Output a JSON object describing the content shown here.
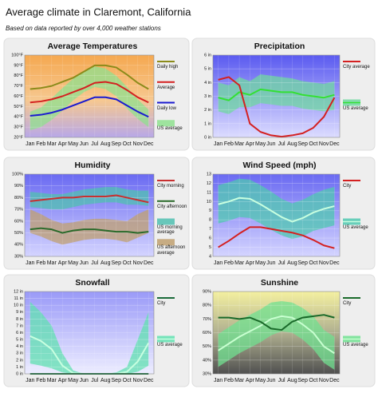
{
  "title": "Average climate in Claremont, California",
  "subtitle": "Based on data reported by over 4,000 weather stations",
  "chart_data": [
    {
      "type": "line",
      "title": "Average Temperatures",
      "categories": [
        "Jan",
        "Feb",
        "Mar",
        "Apr",
        "May",
        "Jun",
        "Jul",
        "Aug",
        "Sep",
        "Oct",
        "Nov",
        "Dec"
      ],
      "ylim": [
        20,
        100
      ],
      "yticks": [
        {
          "value": 20,
          "label": "20°F"
        },
        {
          "value": 30,
          "label": "30°F"
        },
        {
          "value": 40,
          "label": "40°F"
        },
        {
          "value": 50,
          "label": "50°F"
        },
        {
          "value": 60,
          "label": "60°F"
        },
        {
          "value": 70,
          "label": "70°F"
        },
        {
          "value": 80,
          "label": "80°F"
        },
        {
          "value": 90,
          "label": "90°F"
        },
        {
          "value": 100,
          "label": "100°F"
        }
      ],
      "series": [
        {
          "name": "Daily high",
          "color": "#8b8b1a",
          "values": [
            67,
            68,
            70,
            74,
            78,
            84,
            90,
            90,
            88,
            81,
            73,
            67
          ]
        },
        {
          "name": "Average",
          "color": "#d42020",
          "values": [
            54,
            55,
            57,
            60,
            64,
            68,
            73,
            74,
            72,
            66,
            59,
            54
          ]
        },
        {
          "name": "Daily low",
          "color": "#1a1ad0",
          "values": [
            41,
            42,
            44,
            47,
            51,
            55,
            59,
            59,
            57,
            51,
            45,
            40
          ]
        }
      ],
      "bands": [
        {
          "name": "US average",
          "color": "#8fe08f",
          "low": [
            27,
            30,
            37,
            46,
            56,
            64,
            69,
            67,
            60,
            48,
            38,
            30
          ],
          "high": [
            45,
            49,
            58,
            68,
            77,
            85,
            89,
            87,
            80,
            69,
            57,
            47
          ]
        }
      ]
    },
    {
      "type": "line",
      "title": "Precipitation",
      "categories": [
        "Jan",
        "Feb",
        "Mar",
        "Apr",
        "May",
        "Jun",
        "Jul",
        "Aug",
        "Sep",
        "Oct",
        "Nov",
        "Dec"
      ],
      "ylim": [
        0,
        6
      ],
      "yticks": [
        {
          "value": 0,
          "label": "0 in"
        },
        {
          "value": 1,
          "label": "1 in"
        },
        {
          "value": 2,
          "label": "2 in"
        },
        {
          "value": 3,
          "label": "3 in"
        },
        {
          "value": 4,
          "label": "4 in"
        },
        {
          "value": 5,
          "label": "5 in"
        },
        {
          "value": 6,
          "label": "6 in"
        }
      ],
      "series": [
        {
          "name": "City average",
          "color": "#d42020",
          "values": [
            4.2,
            4.4,
            3.8,
            1.0,
            0.4,
            0.15,
            0.05,
            0.15,
            0.3,
            0.7,
            1.5,
            2.9
          ]
        }
      ],
      "bands": [
        {
          "name": "US average",
          "color": "#70d8a0",
          "line_color": "#33e033",
          "values": [
            2.9,
            2.7,
            3.3,
            3.1,
            3.5,
            3.4,
            3.3,
            3.3,
            3.1,
            3.0,
            2.9,
            3.1
          ],
          "low": [
            1.9,
            1.7,
            2.2,
            2.2,
            2.5,
            2.4,
            2.3,
            2.3,
            2.1,
            2.0,
            1.9,
            2.0
          ],
          "high": [
            4.0,
            3.8,
            4.4,
            4.1,
            4.6,
            4.5,
            4.4,
            4.3,
            4.1,
            4.0,
            3.9,
            4.1
          ]
        }
      ]
    },
    {
      "type": "line",
      "title": "Humidity",
      "categories": [
        "Jan",
        "Feb",
        "Mar",
        "Apr",
        "May",
        "Jun",
        "Jul",
        "Aug",
        "Sep",
        "Oct",
        "Nov",
        "Dec"
      ],
      "ylim": [
        30,
        100
      ],
      "yticks": [
        {
          "value": 30,
          "label": "30%"
        },
        {
          "value": 40,
          "label": "40%"
        },
        {
          "value": 50,
          "label": "50%"
        },
        {
          "value": 60,
          "label": "60%"
        },
        {
          "value": 70,
          "label": "70%"
        },
        {
          "value": 80,
          "label": "80%"
        },
        {
          "value": 90,
          "label": "90%"
        },
        {
          "value": 100,
          "label": "100%"
        }
      ],
      "series": [
        {
          "name": "City morning",
          "color": "#c83030",
          "values": [
            77,
            78,
            79,
            80,
            80,
            81,
            81,
            81,
            82,
            80,
            78,
            76
          ]
        },
        {
          "name": "City afternoon",
          "color": "#2a6a2a",
          "values": [
            53,
            54,
            53,
            50,
            52,
            53,
            53,
            52,
            51,
            51,
            50,
            51
          ]
        }
      ],
      "bands": [
        {
          "name": "US morning average",
          "color": "#50c0b0",
          "low": [
            72,
            71,
            70,
            70,
            72,
            74,
            75,
            76,
            76,
            74,
            74,
            73
          ],
          "high": [
            85,
            84,
            83,
            83,
            85,
            87,
            88,
            89,
            89,
            87,
            86,
            86
          ]
        },
        {
          "name": "US afternoon average",
          "color": "#c0a070",
          "low": [
            50,
            47,
            43,
            40,
            42,
            44,
            45,
            45,
            44,
            42,
            46,
            50
          ],
          "high": [
            70,
            66,
            61,
            58,
            59,
            61,
            62,
            62,
            61,
            60,
            66,
            70
          ]
        }
      ]
    },
    {
      "type": "line",
      "title": "Wind Speed (mph)",
      "categories": [
        "Jan",
        "Feb",
        "Mar",
        "Apr",
        "May",
        "Jun",
        "Jul",
        "Aug",
        "Sep",
        "Oct",
        "Nov",
        "Dec"
      ],
      "ylim": [
        4,
        13
      ],
      "yticks": [
        4,
        5,
        6,
        7,
        8,
        9,
        10,
        11,
        12,
        13
      ],
      "series": [
        {
          "name": "City",
          "color": "#d42020",
          "values": [
            5.0,
            5.7,
            6.5,
            7.2,
            7.2,
            7.0,
            6.8,
            6.6,
            6.3,
            5.8,
            5.2,
            4.9
          ]
        }
      ],
      "bands": [
        {
          "name": "US average",
          "color": "#50c8b0",
          "line_color": "#c8ffe0",
          "values": [
            9.7,
            10.0,
            10.4,
            10.3,
            9.7,
            9.0,
            8.3,
            7.8,
            8.2,
            8.8,
            9.2,
            9.5
          ],
          "low": [
            7.6,
            7.9,
            8.3,
            8.2,
            7.6,
            6.9,
            6.3,
            5.9,
            6.2,
            6.8,
            7.1,
            7.4
          ],
          "high": [
            11.8,
            12.1,
            12.5,
            12.4,
            11.8,
            11.1,
            10.3,
            9.8,
            10.2,
            10.8,
            11.3,
            11.6
          ]
        }
      ]
    },
    {
      "type": "line",
      "title": "Snowfall",
      "categories": [
        "Jan",
        "Feb",
        "Mar",
        "Apr",
        "May",
        "Jun",
        "Jul",
        "Aug",
        "Sep",
        "Oct",
        "Nov",
        "Dec"
      ],
      "ylim": [
        0,
        12
      ],
      "yticks": [
        {
          "value": 0,
          "label": "0 in"
        },
        {
          "value": 1,
          "label": "1 in"
        },
        {
          "value": 2,
          "label": "2 in"
        },
        {
          "value": 3,
          "label": "3 in"
        },
        {
          "value": 4,
          "label": "4 in"
        },
        {
          "value": 5,
          "label": "5 in"
        },
        {
          "value": 6,
          "label": "6 in"
        },
        {
          "value": 7,
          "label": "7 in"
        },
        {
          "value": 8,
          "label": "8 in"
        },
        {
          "value": 9,
          "label": "9 in"
        },
        {
          "value": 10,
          "label": "10 in"
        },
        {
          "value": 11,
          "label": "11 in"
        },
        {
          "value": 12,
          "label": "12 in"
        }
      ],
      "series": [
        {
          "name": "City",
          "color": "#1a6a3a",
          "values": [
            0,
            0,
            0,
            0,
            0,
            0,
            0,
            0,
            0,
            0,
            0,
            0
          ]
        }
      ],
      "bands": [
        {
          "name": "US average",
          "color": "#60e0b0",
          "line_color": "#c8ffe0",
          "values": [
            5.5,
            4.8,
            3.6,
            1.2,
            0.1,
            0,
            0,
            0,
            0,
            0.3,
            1.8,
            4.5
          ],
          "low": [
            1.5,
            1.2,
            0.8,
            0.2,
            0,
            0,
            0,
            0,
            0,
            0,
            0.3,
            1.2
          ],
          "high": [
            10.5,
            9.0,
            7.0,
            3.0,
            0.5,
            0,
            0,
            0,
            0.2,
            1.0,
            5.0,
            9.0
          ]
        }
      ]
    },
    {
      "type": "line",
      "title": "Sunshine",
      "categories": [
        "Jan",
        "Feb",
        "Mar",
        "Apr",
        "May",
        "Jun",
        "Jul",
        "Aug",
        "Sep",
        "Oct",
        "Nov",
        "Dec"
      ],
      "ylim": [
        30,
        90
      ],
      "yticks": [
        {
          "value": 30,
          "label": "30%"
        },
        {
          "value": 40,
          "label": "40%"
        },
        {
          "value": 50,
          "label": "50%"
        },
        {
          "value": 60,
          "label": "60%"
        },
        {
          "value": 70,
          "label": "70%"
        },
        {
          "value": 80,
          "label": "80%"
        },
        {
          "value": 90,
          "label": "90%"
        }
      ],
      "series": [
        {
          "name": "City",
          "color": "#1a6a2a",
          "values": [
            71,
            71,
            70,
            71,
            68,
            63,
            62,
            68,
            71,
            72,
            73,
            71
          ]
        }
      ],
      "bands": [
        {
          "name": "US average",
          "color": "#70e090",
          "line_color": "#c8ffd0",
          "values": [
            47,
            52,
            57,
            61,
            65,
            70,
            72,
            71,
            66,
            60,
            50,
            45
          ],
          "low": [
            35,
            40,
            45,
            49,
            53,
            58,
            61,
            60,
            55,
            48,
            38,
            33
          ],
          "high": [
            59,
            64,
            69,
            73,
            77,
            82,
            83,
            82,
            78,
            72,
            62,
            57
          ]
        }
      ]
    }
  ]
}
